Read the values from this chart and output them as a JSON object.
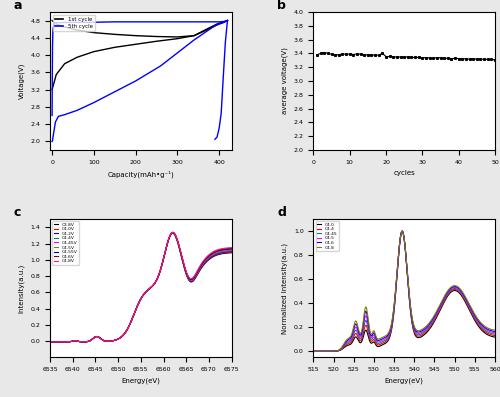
{
  "panel_a": {
    "title": "a",
    "xlabel": "Capacity(mAh•g⁻¹)",
    "ylabel": "Voltage(V)",
    "ylim": [
      1.8,
      5.0
    ],
    "xlim": [
      -5,
      430
    ],
    "yticks": [
      2.0,
      2.4,
      2.8,
      3.2,
      3.6,
      4.0,
      4.4,
      4.8
    ],
    "xticks": [
      0,
      100,
      200,
      300,
      400
    ],
    "legend": [
      {
        "label": "1st cycle",
        "color": "black"
      },
      {
        "label": "5th cycle",
        "color": "blue"
      }
    ]
  },
  "panel_b": {
    "title": "b",
    "xlabel": "cycles",
    "ylabel": "average voltage(V)",
    "ylim": [
      2.0,
      4.0
    ],
    "xlim": [
      0,
      50
    ],
    "yticks": [
      2.0,
      2.2,
      2.4,
      2.6,
      2.8,
      3.0,
      3.2,
      3.4,
      3.6,
      3.8,
      4.0
    ],
    "xticks": [
      0,
      10,
      20,
      30,
      40,
      50
    ]
  },
  "panel_c": {
    "title": "c",
    "xlabel": "Energy(eV)",
    "ylabel": "Intensity(a.u.)",
    "ylim": [
      -0.2,
      1.5
    ],
    "xlim": [
      6535,
      6575
    ],
    "xticks": [
      6535,
      6540,
      6545,
      6550,
      6555,
      6560,
      6565,
      6570,
      6575
    ],
    "yticks": [
      0.0,
      0.2,
      0.4,
      0.6,
      0.8,
      1.0,
      1.2,
      1.4
    ],
    "legend": [
      {
        "label": "C3.8V",
        "color": "#000000"
      },
      {
        "label": "C4.0V",
        "color": "#ff0000"
      },
      {
        "label": "C4.2V",
        "color": "#0000ff"
      },
      {
        "label": "C4.4V",
        "color": "#008080"
      },
      {
        "label": "C4.45V",
        "color": "#ff00ff"
      },
      {
        "label": "C4.5V",
        "color": "#808000"
      },
      {
        "label": "C4.55V",
        "color": "#000080"
      },
      {
        "label": "C4.6V",
        "color": "#800000"
      },
      {
        "label": "C4.8V",
        "color": "#ff1493"
      }
    ]
  },
  "panel_d": {
    "title": "d",
    "xlabel": "Energy(eV)",
    "ylabel": "Normalized Intensity(a.u.)",
    "ylim": [
      -0.05,
      1.1
    ],
    "xlim": [
      515,
      560
    ],
    "xticks": [
      515,
      520,
      525,
      530,
      535,
      540,
      545,
      550,
      555,
      560
    ],
    "yticks": [
      0.0,
      0.2,
      0.4,
      0.6,
      0.8,
      1.0
    ],
    "legend": [
      {
        "label": "C4.0",
        "color": "#000000"
      },
      {
        "label": "C4.4",
        "color": "#ff0000"
      },
      {
        "label": "C4.45",
        "color": "#008080"
      },
      {
        "label": "C4.5",
        "color": "#ff00ff"
      },
      {
        "label": "C4.6",
        "color": "#0000ff"
      },
      {
        "label": "C4.8",
        "color": "#808000"
      }
    ]
  },
  "bg_color": "#e8e8e8",
  "axes_bg": "white"
}
